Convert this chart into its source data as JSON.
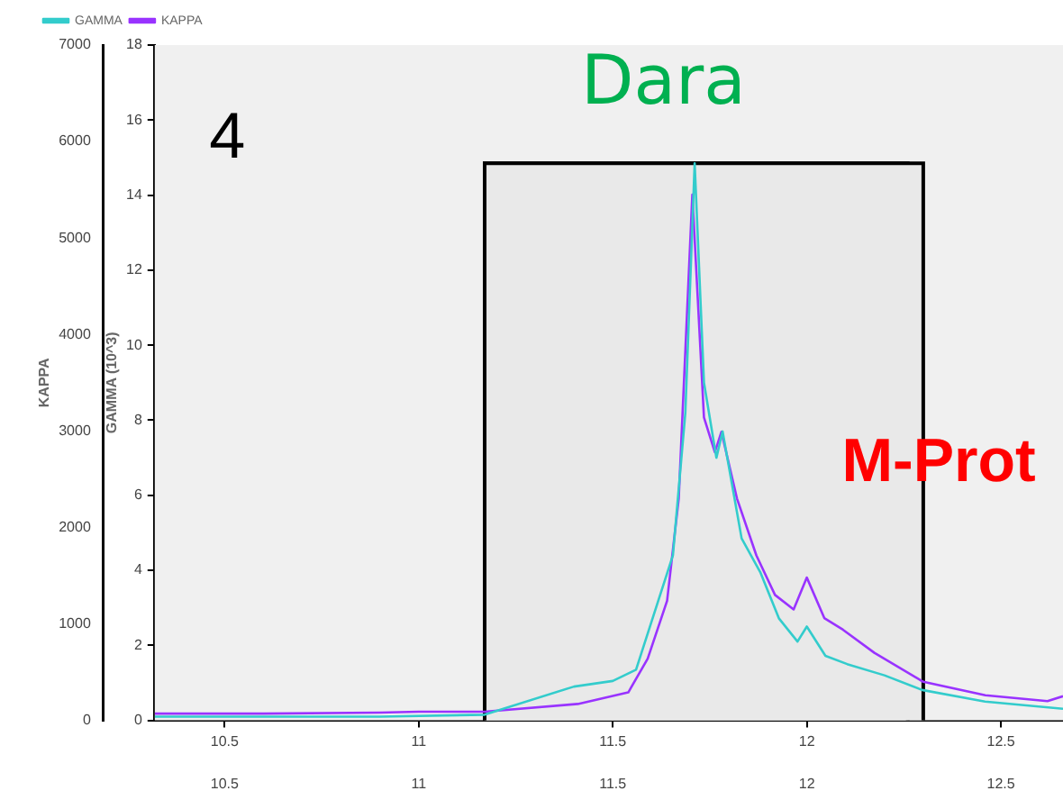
{
  "chart_data": {
    "type": "line",
    "ylabel": "KAPPA",
    "y2label": "GAMMA (10^3)",
    "legend": "top",
    "grid": false,
    "marker": "none",
    "line_style": "solid",
    "xlim": [
      10.32,
      12.66
    ],
    "xticks": [
      10.5,
      11.0,
      11.5,
      12.0,
      12.5
    ],
    "x2lim": [
      10.32,
      12.66
    ],
    "x2ticks": [
      10.5,
      11.0,
      11.5,
      12.0,
      12.5
    ],
    "ylim": [
      0,
      7000
    ],
    "yticks": [
      0,
      1000,
      2000,
      3000,
      4000,
      5000,
      6000,
      7000
    ],
    "y2lim": [
      0,
      18
    ],
    "y2ticks": [
      0,
      2,
      4,
      6,
      8,
      10,
      12,
      14,
      16,
      18
    ],
    "series": [
      {
        "name": "GAMMA",
        "color": "#33cccc",
        "axis": "y2",
        "x": [
          10.32,
          10.6,
          10.9,
          11.17,
          11.4,
          11.5,
          11.56,
          11.655,
          11.687,
          11.711,
          11.735,
          11.767,
          11.783,
          11.832,
          11.88,
          11.928,
          11.976,
          12.0,
          12.048,
          12.104,
          12.2,
          12.297,
          12.459,
          12.66
        ],
        "values": [
          0.1,
          0.1,
          0.1,
          0.15,
          0.9,
          1.05,
          1.35,
          4.4,
          8.2,
          14.85,
          9.0,
          7.0,
          7.7,
          4.85,
          3.95,
          2.72,
          2.1,
          2.5,
          1.72,
          1.5,
          1.2,
          0.81,
          0.5,
          0.31
        ]
      },
      {
        "name": "KAPPA",
        "color": "#9933ff",
        "axis": "y",
        "x": [
          10.32,
          10.6,
          10.9,
          11.0,
          11.17,
          11.41,
          11.54,
          11.59,
          11.64,
          11.67,
          11.705,
          11.735,
          11.763,
          11.78,
          11.82,
          11.87,
          11.918,
          11.966,
          12.0,
          12.045,
          12.093,
          12.174,
          12.3,
          12.46,
          12.62,
          12.66
        ],
        "values": [
          70,
          70,
          80,
          90,
          90,
          170,
          290,
          640,
          1240,
          2300,
          5450,
          3140,
          2780,
          2990,
          2300,
          1710,
          1300,
          1150,
          1480,
          1060,
          940,
          700,
          400,
          260,
          200,
          250
        ]
      }
    ],
    "bands": [
      {
        "axis": "x",
        "from": 11.17,
        "to": 12.26,
        "color": "#e9e9e9"
      },
      {
        "axis": "x",
        "from": 11.17,
        "to": 12.3,
        "color": "#e9e9e9"
      }
    ],
    "annotations": [
      "4",
      "Dara",
      "M-Prot"
    ]
  }
}
